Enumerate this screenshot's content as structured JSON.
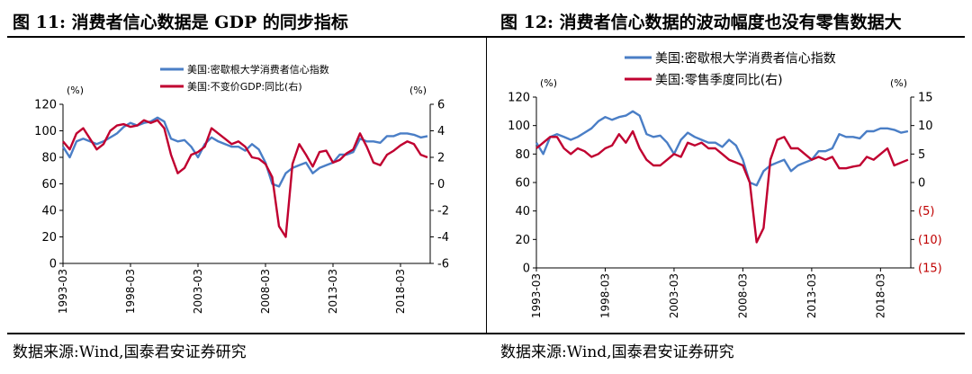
{
  "left_panel": {
    "title": "图 11:  消费者信心数据是 GDP 的同步指标",
    "source": "数据来源:Wind,国泰君安证券研究"
  },
  "right_panel": {
    "title": "图 12:  消费者信心数据的波动幅度也没有零售数据大",
    "source": "数据来源:Wind,国泰君安证券研究"
  },
  "colors": {
    "blue": "#4a7ec6",
    "red": "#c00030"
  },
  "chart_data": [
    {
      "type": "line",
      "x_tick_labels": [
        "1993-03",
        "1998-03",
        "2003-03",
        "2008-03",
        "2013-03",
        "2018-03"
      ],
      "x_tick_years": [
        1993,
        1998,
        2003,
        2008,
        2013,
        2018
      ],
      "xlim": [
        1993.0,
        2020.2
      ],
      "y_left": {
        "label": "(%)",
        "lim": [
          0,
          120
        ],
        "ticks": [
          0,
          20,
          40,
          60,
          80,
          100,
          120
        ],
        "tick_labels": [
          "0",
          "20",
          "40",
          "60",
          "80",
          "100",
          "120"
        ]
      },
      "y_right": {
        "label": "(%)",
        "lim": [
          -6,
          6
        ],
        "ticks": [
          -6,
          -4,
          -2,
          0,
          2,
          4,
          6
        ],
        "tick_labels": [
          "-6",
          "-4",
          "-2",
          "0",
          "2",
          "4",
          "6"
        ]
      },
      "series": [
        {
          "name": "美国:密歇根大学消费者信心指数",
          "axis": "left",
          "color": "#4a7ec6",
          "x": [
            1993.0,
            1993.5,
            1994.0,
            1994.5,
            1995.0,
            1995.5,
            1996.0,
            1996.5,
            1997.0,
            1997.5,
            1998.0,
            1998.5,
            1999.0,
            1999.5,
            2000.0,
            2000.5,
            2001.0,
            2001.5,
            2002.0,
            2002.5,
            2003.0,
            2003.5,
            2004.0,
            2004.5,
            2005.0,
            2005.5,
            2006.0,
            2006.5,
            2007.0,
            2007.5,
            2008.0,
            2008.5,
            2009.0,
            2009.5,
            2010.0,
            2010.5,
            2011.0,
            2011.5,
            2012.0,
            2012.5,
            2013.0,
            2013.5,
            2014.0,
            2014.5,
            2015.0,
            2015.5,
            2016.0,
            2016.5,
            2017.0,
            2017.5,
            2018.0,
            2018.5,
            2019.0,
            2019.5,
            2020.0
          ],
          "values": [
            88,
            80,
            92,
            94,
            92,
            90,
            92,
            95,
            98,
            103,
            106,
            104,
            106,
            107,
            110,
            107,
            94,
            92,
            93,
            88,
            80,
            90,
            95,
            92,
            90,
            88,
            88,
            85,
            90,
            86,
            76,
            60,
            58,
            68,
            72,
            74,
            76,
            68,
            72,
            74,
            76,
            82,
            82,
            84,
            94,
            92,
            92,
            91,
            96,
            96,
            98,
            98,
            97,
            95,
            96
          ]
        },
        {
          "name": "美国:不变价GDP:同比(右)",
          "axis": "right",
          "color": "#c00030",
          "x": [
            1993.0,
            1993.5,
            1994.0,
            1994.5,
            1995.0,
            1995.5,
            1996.0,
            1996.5,
            1997.0,
            1997.5,
            1998.0,
            1998.5,
            1999.0,
            1999.5,
            2000.0,
            2000.5,
            2001.0,
            2001.5,
            2002.0,
            2002.5,
            2003.0,
            2003.5,
            2004.0,
            2004.5,
            2005.0,
            2005.5,
            2006.0,
            2006.5,
            2007.0,
            2007.5,
            2008.0,
            2008.5,
            2009.0,
            2009.5,
            2010.0,
            2010.5,
            2011.0,
            2011.5,
            2012.0,
            2012.5,
            2013.0,
            2013.5,
            2014.0,
            2014.5,
            2015.0,
            2015.5,
            2016.0,
            2016.5,
            2017.0,
            2017.5,
            2018.0,
            2018.5,
            2019.0,
            2019.5,
            2020.0
          ],
          "values": [
            3.2,
            2.6,
            3.8,
            4.2,
            3.4,
            2.6,
            3.0,
            4.0,
            4.4,
            4.5,
            4.3,
            4.4,
            4.8,
            4.6,
            4.8,
            4.2,
            2.2,
            0.8,
            1.2,
            2.2,
            2.4,
            2.8,
            4.2,
            3.8,
            3.4,
            3.0,
            3.2,
            2.8,
            2.0,
            1.9,
            1.5,
            0.5,
            -3.2,
            -4.0,
            1.5,
            3.0,
            2.2,
            1.3,
            2.4,
            2.5,
            1.6,
            1.8,
            2.3,
            2.6,
            3.8,
            2.8,
            1.6,
            1.4,
            2.2,
            2.5,
            2.9,
            3.2,
            3.0,
            2.2,
            2.0
          ]
        }
      ],
      "legend_position": "top-center"
    },
    {
      "type": "line",
      "x_tick_labels": [
        "1993-03",
        "1998-03",
        "2003-03",
        "2008-03",
        "2013-03",
        "2018-03"
      ],
      "x_tick_years": [
        1993,
        1998,
        2003,
        2008,
        2013,
        2018
      ],
      "xlim": [
        1993.0,
        2020.2
      ],
      "y_left": {
        "label": "(%)",
        "lim": [
          0,
          120
        ],
        "ticks": [
          0,
          20,
          40,
          60,
          80,
          100,
          120
        ],
        "tick_labels": [
          "0",
          "20",
          "40",
          "60",
          "80",
          "100",
          "120"
        ]
      },
      "y_right": {
        "label": "(%)",
        "lim": [
          -15,
          15
        ],
        "ticks": [
          -15,
          -10,
          -5,
          0,
          5,
          10,
          15
        ],
        "tick_labels": [
          "(15)",
          "(10)",
          "(5)",
          "0",
          "5",
          "10",
          "15"
        ]
      },
      "series": [
        {
          "name": "美国:密歇根大学消费者信心指数",
          "axis": "left",
          "color": "#4a7ec6",
          "x": [
            1993.0,
            1993.5,
            1994.0,
            1994.5,
            1995.0,
            1995.5,
            1996.0,
            1996.5,
            1997.0,
            1997.5,
            1998.0,
            1998.5,
            1999.0,
            1999.5,
            2000.0,
            2000.5,
            2001.0,
            2001.5,
            2002.0,
            2002.5,
            2003.0,
            2003.5,
            2004.0,
            2004.5,
            2005.0,
            2005.5,
            2006.0,
            2006.5,
            2007.0,
            2007.5,
            2008.0,
            2008.5,
            2009.0,
            2009.5,
            2010.0,
            2010.5,
            2011.0,
            2011.5,
            2012.0,
            2012.5,
            2013.0,
            2013.5,
            2014.0,
            2014.5,
            2015.0,
            2015.5,
            2016.0,
            2016.5,
            2017.0,
            2017.5,
            2018.0,
            2018.5,
            2019.0,
            2019.5,
            2020.0
          ],
          "values": [
            88,
            80,
            92,
            94,
            92,
            90,
            92,
            95,
            98,
            103,
            106,
            104,
            106,
            107,
            110,
            107,
            94,
            92,
            93,
            88,
            80,
            90,
            95,
            92,
            90,
            88,
            88,
            85,
            90,
            86,
            76,
            60,
            58,
            68,
            72,
            74,
            76,
            68,
            72,
            74,
            76,
            82,
            82,
            84,
            94,
            92,
            92,
            91,
            96,
            96,
            98,
            98,
            97,
            95,
            96
          ]
        },
        {
          "name": "美国:零售季度同比(右)",
          "axis": "right",
          "color": "#c00030",
          "x": [
            1993.0,
            1993.5,
            1994.0,
            1994.5,
            1995.0,
            1995.5,
            1996.0,
            1996.5,
            1997.0,
            1997.5,
            1998.0,
            1998.5,
            1999.0,
            1999.5,
            2000.0,
            2000.5,
            2001.0,
            2001.5,
            2002.0,
            2002.5,
            2003.0,
            2003.5,
            2004.0,
            2004.5,
            2005.0,
            2005.5,
            2006.0,
            2006.5,
            2007.0,
            2007.5,
            2008.0,
            2008.5,
            2009.0,
            2009.5,
            2010.0,
            2010.5,
            2011.0,
            2011.5,
            2012.0,
            2012.5,
            2013.0,
            2013.5,
            2014.0,
            2014.5,
            2015.0,
            2015.5,
            2016.0,
            2016.5,
            2017.0,
            2017.5,
            2018.0,
            2018.5,
            2019.0,
            2019.5,
            2020.0
          ],
          "values": [
            6.0,
            7.0,
            8.0,
            8.0,
            6.0,
            5.0,
            6.0,
            5.5,
            4.5,
            5.0,
            6.0,
            6.5,
            8.5,
            7.0,
            9.0,
            6.0,
            4.0,
            3.0,
            3.0,
            4.0,
            5.0,
            4.5,
            7.0,
            6.5,
            7.0,
            6.0,
            6.0,
            5.0,
            4.0,
            3.5,
            3.0,
            0.0,
            -10.5,
            -8.0,
            4.0,
            7.5,
            8.0,
            6.0,
            6.0,
            5.0,
            4.0,
            4.5,
            4.0,
            4.5,
            2.5,
            2.5,
            2.8,
            3.0,
            4.5,
            4.0,
            5.0,
            6.0,
            3.0,
            3.5,
            4.0
          ]
        }
      ],
      "legend_position": "top-left"
    }
  ]
}
